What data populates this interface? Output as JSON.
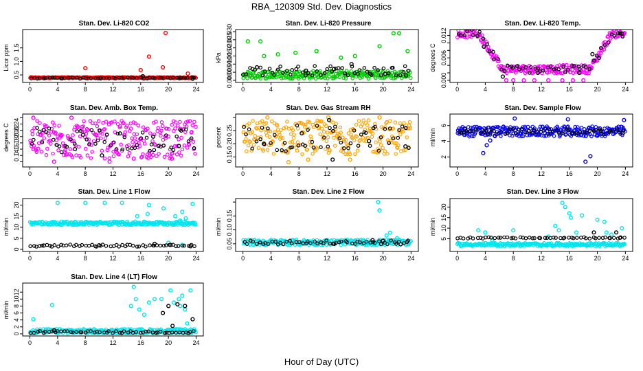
{
  "figure": {
    "title": "RBA_120309  Std. Dev. Diagnostics",
    "xlabel": "Hour of Day (UTC)"
  },
  "chart_data": [
    {
      "type": "scatter",
      "title": "Stan. Dev. Li-820 CO2",
      "ylabel": "Licor ppm",
      "xlim": [
        0,
        24
      ],
      "ylim": [
        0.3,
        2.1
      ],
      "xticks": [
        "0",
        "4",
        "8",
        "12",
        "16",
        "20",
        "24"
      ],
      "yticks": [
        0.5,
        1.0,
        1.5
      ],
      "yticklabels": [
        "0.5",
        "1.0",
        "1.5"
      ],
      "series": [
        {
          "color": "#ff0000",
          "band": [
            0.38,
            0.42
          ],
          "values": [
            [
              8,
              0.75
            ],
            [
              16,
              0.68
            ],
            [
              17.2,
              1.18
            ],
            [
              19.2,
              0.78
            ],
            [
              19.6,
              2.05
            ],
            [
              22.8,
              0.55
            ]
          ]
        },
        {
          "color": "#000000",
          "band": [
            0.36,
            0.41
          ],
          "values": [
            [
              4.5,
              0.38
            ],
            [
              10.2,
              0.37
            ],
            [
              16.3,
              0.45
            ],
            [
              21.8,
              0.39
            ],
            [
              23.5,
              0.36
            ]
          ]
        }
      ]
    },
    {
      "type": "scatter",
      "title": "Stan. Dev. Li-820 Pressure",
      "ylabel": "kPa",
      "xlim": [
        0,
        24
      ],
      "ylim": [
        0,
        0.03
      ],
      "xticks": [
        "0",
        "4",
        "8",
        "12",
        "16",
        "20",
        "24"
      ],
      "yticks": [
        0.0,
        0.005,
        0.01,
        0.015,
        0.02,
        0.025,
        0.03
      ],
      "yticklabels": [
        "0.000",
        "0.005",
        "0.010",
        "0.015",
        "0.020",
        "0.025",
        "0.030"
      ],
      "series": [
        {
          "color": "#00cc00",
          "band": [
            0.001,
            0.006
          ],
          "values": [
            [
              0.7,
              0.024
            ],
            [
              2.5,
              0.024
            ],
            [
              3,
              0.015
            ],
            [
              5,
              0.016
            ],
            [
              7.5,
              0.017
            ],
            [
              10.5,
              0.018
            ],
            [
              14,
              0.014
            ],
            [
              16,
              0.015
            ],
            [
              19.5,
              0.021
            ],
            [
              21.5,
              0.029
            ],
            [
              22.3,
              0.029
            ],
            [
              23.5,
              0.018
            ]
          ]
        },
        {
          "color": "#000000",
          "band": [
            0.003,
            0.009
          ],
          "values": [
            [
              2,
              0.008
            ],
            [
              9,
              0.006
            ],
            [
              13,
              0.007
            ],
            [
              15.5,
              0.01
            ],
            [
              20.3,
              0.004
            ],
            [
              23.3,
              0.003
            ]
          ]
        }
      ]
    },
    {
      "type": "scatter",
      "title": "Stan. Dev. Li-820 Temp.",
      "ylabel": "degrees C",
      "xlim": [
        0,
        24
      ],
      "ylim": [
        0,
        0.013
      ],
      "xticks": [
        "0",
        "4",
        "8",
        "12",
        "16",
        "20",
        "24"
      ],
      "yticks": [
        0.0,
        0.002,
        0.004,
        0.006,
        0.008,
        0.01,
        0.012
      ],
      "yticklabels": [
        "0.000",
        "",
        "",
        "0.006",
        "",
        "",
        "0.012"
      ],
      "series": [
        {
          "color": "#ff00ff",
          "curve": "temp",
          "values": [
            [
              7,
              0
            ],
            [
              8,
              0
            ],
            [
              9.5,
              0
            ],
            [
              11,
              0
            ],
            [
              13,
              0
            ],
            [
              15,
              0
            ],
            [
              16.5,
              0
            ],
            [
              18,
              0
            ]
          ]
        },
        {
          "color": "#000000",
          "curve": "temp",
          "values": [
            [
              3.8,
              0.009
            ],
            [
              6.5,
              0.001
            ],
            [
              11.5,
              0.002
            ],
            [
              17.4,
              0.002
            ],
            [
              19.3,
              0.007
            ],
            [
              23.5,
              0.0125
            ]
          ]
        }
      ]
    },
    {
      "type": "scatter",
      "title": "Stan. Dev. Amb. Box Temp.",
      "ylabel": "degrees C",
      "xlim": [
        0,
        24
      ],
      "ylim": [
        0.11,
        0.265
      ],
      "xticks": [
        "0",
        "4",
        "8",
        "12",
        "16",
        "20",
        "24"
      ],
      "yticks": [
        0.12,
        0.14,
        0.16,
        0.18,
        0.2,
        0.22,
        0.24,
        0.26
      ],
      "yticklabels": [
        "",
        "0.14",
        "0.16",
        "0.18",
        "0.20",
        "0.22",
        "0.24",
        ""
      ],
      "series": [
        {
          "color": "#ff00ff",
          "band": [
            0.13,
            0.25
          ],
          "values": [
            [
              0.5,
              0.26
            ],
            [
              6,
              0.26
            ],
            [
              3.5,
              0.12
            ],
            [
              11.5,
              0.12
            ],
            [
              15,
              0.13
            ],
            [
              20.5,
              0.13
            ]
          ]
        },
        {
          "color": "#000000",
          "band": [
            0.15,
            0.23
          ],
          "values": [
            [
              2,
              0.22
            ],
            [
              6.5,
              0.16
            ],
            [
              10.4,
              0.14
            ],
            [
              13,
              0.21
            ],
            [
              17.8,
              0.2
            ],
            [
              21.5,
              0.17
            ]
          ]
        }
      ]
    },
    {
      "type": "scatter",
      "title": "Stan. Dev. Gas Stream RH",
      "ylabel": "percent",
      "xlim": [
        0,
        24
      ],
      "ylim": [
        0.12,
        0.305
      ],
      "xticks": [
        "0",
        "4",
        "8",
        "12",
        "16",
        "20",
        "24"
      ],
      "yticks": [
        0.15,
        0.2,
        0.25,
        0.3
      ],
      "yticklabels": [
        "0.15",
        "0.20",
        "0.25",
        ""
      ],
      "series": [
        {
          "color": "#ffa500",
          "band": [
            0.16,
            0.29
          ],
          "values": [
            [
              3.5,
              0.3
            ],
            [
              6.5,
              0.13
            ],
            [
              9.3,
              0.14
            ],
            [
              12.2,
              0.3
            ],
            [
              15.3,
              0.14
            ],
            [
              19.5,
              0.3
            ]
          ]
        },
        {
          "color": "#000000",
          "band": [
            0.17,
            0.27
          ],
          "values": [
            [
              3,
              0.2
            ],
            [
              8.4,
              0.24
            ],
            [
              12.3,
              0.29
            ],
            [
              12.8,
              0.14
            ],
            [
              18,
              0.21
            ],
            [
              23.2,
              0.19
            ]
          ]
        }
      ]
    },
    {
      "type": "scatter",
      "title": "Stan. Dev. Sample Flow",
      "ylabel": "ml/min",
      "xlim": [
        0,
        24
      ],
      "ylim": [
        1,
        7.2
      ],
      "xticks": [
        "0",
        "4",
        "8",
        "12",
        "16",
        "20",
        "24"
      ],
      "yticks": [
        2,
        4,
        6
      ],
      "yticklabels": [
        "2",
        "4",
        "6"
      ],
      "series": [
        {
          "color": "#0000ff",
          "band": [
            4.6,
            5.9
          ],
          "values": [
            [
              3.7,
              2.5
            ],
            [
              4.2,
              3.5
            ],
            [
              4.7,
              4.1
            ],
            [
              8.2,
              6.9
            ],
            [
              15.8,
              6.8
            ],
            [
              18.3,
              1.4
            ],
            [
              19,
              2.1
            ],
            [
              20,
              4.7
            ],
            [
              23.8,
              6.7
            ]
          ]
        },
        {
          "color": "#000000",
          "band": [
            4.9,
            5.6
          ],
          "values": [
            [
              1,
              5.2
            ],
            [
              11,
              5.4
            ],
            [
              20.5,
              5.3
            ],
            [
              23.6,
              5.0
            ]
          ]
        }
      ]
    },
    {
      "type": "scatter",
      "title": "Stan. Dev. Line 1 Flow",
      "ylabel": "ml/min",
      "xlim": [
        0,
        24
      ],
      "ylim": [
        0,
        22
      ],
      "xticks": [
        "0",
        "4",
        "8",
        "12",
        "16",
        "20",
        "24"
      ],
      "yticks": [
        0,
        5,
        10,
        15,
        20
      ],
      "yticklabels": [
        "0",
        "5",
        "10",
        "15",
        "20"
      ],
      "series": [
        {
          "color": "#00e5ee",
          "band": [
            11.0,
            12.6
          ],
          "values": [
            [
              4,
              21
            ],
            [
              8,
              21
            ],
            [
              10.8,
              21
            ],
            [
              13.3,
              21
            ],
            [
              15.5,
              15
            ],
            [
              17,
              16
            ],
            [
              17.2,
              20
            ],
            [
              19.3,
              18.5
            ],
            [
              21,
              15
            ],
            [
              21.7,
              13
            ],
            [
              22,
              17
            ],
            [
              22.5,
              14
            ],
            [
              23.5,
              20.5
            ],
            [
              20,
              3
            ],
            [
              22,
              2
            ]
          ]
        },
        {
          "color": "#000000",
          "band": [
            1.2,
            2.2
          ],
          "values": [
            [
              2,
              1.7
            ],
            [
              10,
              1.8
            ],
            [
              18,
              2.5
            ],
            [
              20.3,
              2.0
            ],
            [
              23.2,
              1.4
            ]
          ]
        }
      ]
    },
    {
      "type": "scatter",
      "title": "Stan. Dev. Line 2 Flow",
      "ylabel": "ml/min",
      "xlim": [
        0,
        24
      ],
      "ylim": [
        0.03,
        0.205
      ],
      "xticks": [
        "0",
        "4",
        "8",
        "12",
        "16",
        "20",
        "24"
      ],
      "yticks": [
        0.05,
        0.1,
        0.15,
        0.2
      ],
      "yticklabels": [
        "0.05",
        "0.10",
        "0.15",
        ""
      ],
      "series": [
        {
          "color": "#00e5ee",
          "band": [
            0.045,
            0.065
          ],
          "values": [
            [
              19.3,
              0.2
            ],
            [
              19.5,
              0.17
            ],
            [
              20.5,
              0.08
            ],
            [
              21,
              0.09
            ],
            [
              22,
              0.07
            ]
          ]
        },
        {
          "color": "#000000",
          "band": [
            0.048,
            0.062
          ],
          "values": [
            [
              13,
              0.05
            ],
            [
              18.5,
              0.063
            ],
            [
              20,
              0.061
            ],
            [
              22.5,
              0.048
            ]
          ]
        }
      ]
    },
    {
      "type": "scatter",
      "title": "Stan. Dev. Line 3 Flow",
      "ylabel": "ml/min",
      "xlim": [
        0,
        24
      ],
      "ylim": [
        0,
        23
      ],
      "xticks": [
        "0",
        "4",
        "8",
        "12",
        "16",
        "20",
        "24"
      ],
      "yticks": [
        5,
        10,
        15,
        20
      ],
      "yticklabels": [
        "5",
        "10",
        "15",
        "20"
      ],
      "series": [
        {
          "color": "#00e5ee",
          "band": [
            1.5,
            3.0
          ],
          "values": [
            [
              3,
              9
            ],
            [
              4,
              8
            ],
            [
              5,
              4
            ],
            [
              8,
              9
            ],
            [
              13,
              6
            ],
            [
              14,
              11
            ],
            [
              14.5,
              9
            ],
            [
              15,
              22
            ],
            [
              15.4,
              20
            ],
            [
              16,
              17
            ],
            [
              16.2,
              15
            ],
            [
              17,
              8
            ],
            [
              17.8,
              16
            ],
            [
              20,
              14
            ],
            [
              21,
              13
            ],
            [
              21.3,
              8
            ],
            [
              22,
              7
            ],
            [
              23.5,
              10
            ]
          ]
        },
        {
          "color": "#000000",
          "band": [
            5.1,
            5.7
          ],
          "values": [
            [
              19.5,
              8
            ],
            [
              22.7,
              8
            ],
            [
              23.3,
              5.6
            ]
          ]
        }
      ]
    },
    {
      "type": "scatter",
      "title": "Stan. Dev. Line 4 (LT) Flow",
      "ylabel": "ml/min",
      "xlim": [
        0,
        24
      ],
      "ylim": [
        0,
        14
      ],
      "xticks": [
        "0",
        "4",
        "8",
        "12",
        "16",
        "20",
        "24"
      ],
      "yticks": [
        0,
        2,
        4,
        6,
        8,
        10,
        12
      ],
      "yticklabels": [
        "0",
        "2",
        "4",
        "6",
        "8",
        "10",
        "12"
      ],
      "series": [
        {
          "color": "#00e5ee",
          "band": [
            0.1,
            1.4
          ],
          "values": [
            [
              0.5,
              4.2
            ],
            [
              3.2,
              8.3
            ],
            [
              14.6,
              8
            ],
            [
              15,
              13.5
            ],
            [
              15.3,
              10
            ],
            [
              15.8,
              7
            ],
            [
              16.5,
              5.5
            ],
            [
              17.2,
              9
            ],
            [
              18,
              10
            ],
            [
              19,
              10
            ],
            [
              20.3,
              12.5
            ],
            [
              20.8,
              9
            ],
            [
              21.5,
              10
            ],
            [
              21.7,
              8
            ],
            [
              22,
              11
            ],
            [
              22.4,
              7
            ],
            [
              22.7,
              3
            ],
            [
              23.2,
              12.5
            ]
          ]
        },
        {
          "color": "#000000",
          "band": [
            0.2,
            0.8
          ],
          "values": [
            [
              3.5,
              1.0
            ],
            [
              19.2,
              6
            ],
            [
              20,
              8
            ],
            [
              20.6,
              2.3
            ],
            [
              21.3,
              8.5
            ],
            [
              22.4,
              8
            ],
            [
              23.5,
              4.2
            ]
          ]
        }
      ]
    }
  ]
}
